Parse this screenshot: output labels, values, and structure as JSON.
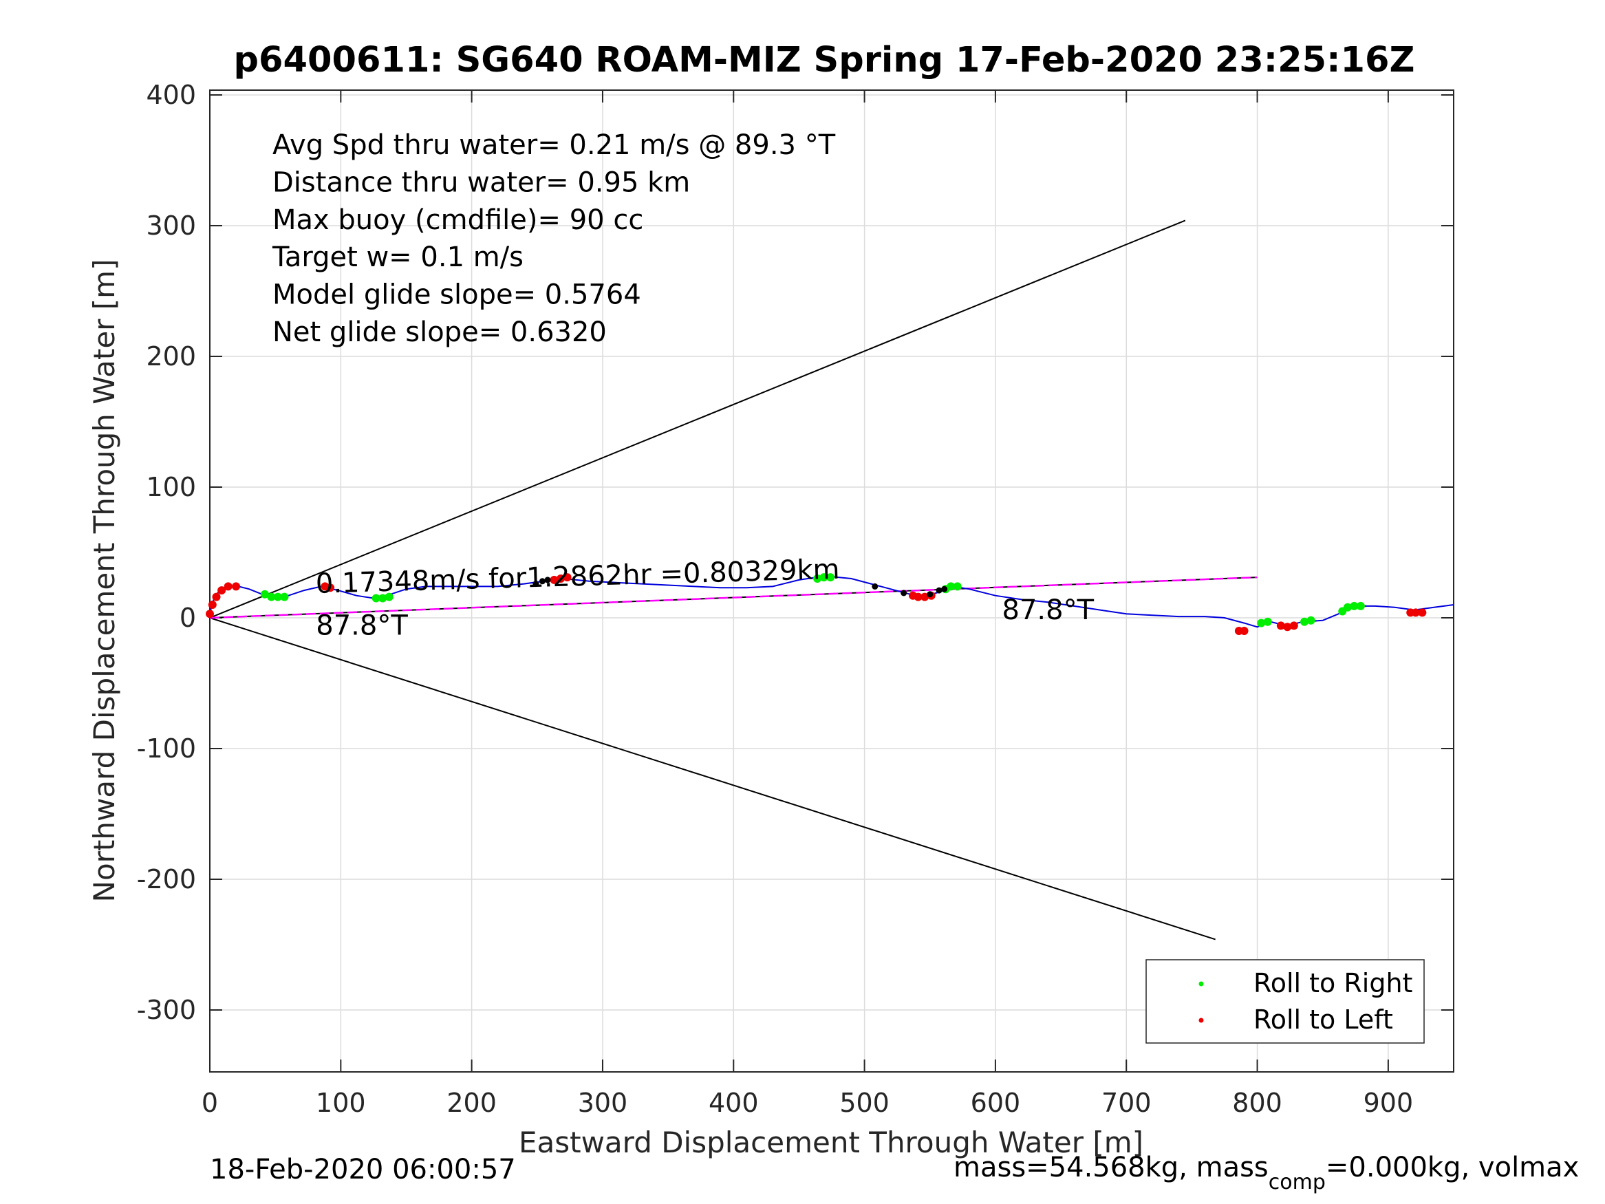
{
  "chart_data": {
    "type": "line",
    "title": "p6400611: SG640 ROAM-MIZ Spring 17-Feb-2020 23:25:16Z",
    "xlabel": "Eastward Displacement Through Water [m]",
    "ylabel": "Northward Displacement Through Water [m]",
    "xlim": [
      0,
      950
    ],
    "ylim": [
      -350,
      405
    ],
    "xticks": [
      0,
      100,
      200,
      300,
      400,
      500,
      600,
      700,
      800,
      900
    ],
    "yticks": [
      -300,
      -200,
      -100,
      0,
      100,
      200,
      300,
      400
    ],
    "x_tick_labels": [
      "0",
      "100",
      "200",
      "300",
      "400",
      "500",
      "600",
      "700",
      "800",
      "900"
    ],
    "y_tick_labels": [
      "-300",
      "-200",
      "-100",
      "0",
      "100",
      "200",
      "300",
      "400"
    ],
    "grid": true,
    "legend_position": "bottom-right",
    "info_lines": [
      "Avg Spd thru water=  0.21 m/s @  89.3 °T",
      "Distance thru water=  0.95 km",
      "Max buoy (cmdfile)= 90 cc",
      "Target w= 0.1 m/s",
      "Model glide slope= 0.5764",
      "Net glide slope= 0.6320"
    ],
    "annotations": [
      {
        "text": "0.17348m/s for1.2862hr =0.80329km",
        "x": 80,
        "y": 19
      },
      {
        "text": "87.8°T",
        "x": 80,
        "y": -13
      },
      {
        "text": "87.8°T",
        "x": 604,
        "y": -1
      }
    ],
    "legend": [
      {
        "label": "Roll to Right",
        "color": "#00ee00"
      },
      {
        "label": "Roll to Left",
        "color": "#ee0000"
      }
    ],
    "track": {
      "color": "#0000dd",
      "x": [
        0,
        1,
        3,
        6,
        10,
        15,
        22,
        30,
        40,
        50,
        60,
        72,
        85,
        98,
        112,
        125,
        138,
        150,
        165,
        180,
        200,
        220,
        240,
        255,
        270,
        290,
        310,
        330,
        350,
        370,
        390,
        410,
        430,
        450,
        470,
        490,
        505,
        520,
        535,
        548,
        558,
        568,
        580,
        600,
        620,
        640,
        660,
        680,
        700,
        720,
        740,
        760,
        775,
        790,
        800,
        810,
        822,
        835,
        850,
        862,
        875,
        890,
        905,
        920,
        935,
        950
      ],
      "y": [
        0,
        8,
        14,
        19,
        22,
        24,
        24,
        22,
        18,
        16,
        17,
        21,
        24,
        21,
        17,
        15,
        18,
        22,
        24,
        24,
        24,
        24,
        26,
        28,
        30,
        28,
        27,
        26,
        25,
        24,
        23,
        23,
        24,
        29,
        32,
        30,
        26,
        22,
        18,
        17,
        20,
        24,
        22,
        17,
        14,
        12,
        9,
        6,
        3,
        2,
        1,
        1,
        0,
        -4,
        -7,
        -3,
        -6,
        -3,
        -2,
        3,
        9,
        9,
        8,
        6,
        8,
        10
      ]
    },
    "course_line": {
      "color": "#000000",
      "x": [
        0,
        800
      ],
      "y": [
        0,
        31
      ]
    },
    "heading_line": {
      "color": "#ff00ff",
      "x": [
        0,
        800
      ],
      "y": [
        0,
        31
      ]
    },
    "envelope_upper": {
      "color": "#000000",
      "x": [
        0,
        745
      ],
      "y": [
        0,
        304
      ]
    },
    "envelope_lower": {
      "color": "#000000",
      "x": [
        0,
        768
      ],
      "y": [
        0,
        -246
      ]
    },
    "roll_left": [
      [
        0,
        3
      ],
      [
        2,
        10
      ],
      [
        5,
        16
      ],
      [
        9,
        21
      ],
      [
        14,
        24
      ],
      [
        20,
        24
      ],
      [
        88,
        24
      ],
      [
        92,
        23
      ],
      [
        263,
        29
      ],
      [
        268,
        30
      ],
      [
        273,
        31
      ],
      [
        537,
        17
      ],
      [
        541,
        16
      ],
      [
        546,
        16
      ],
      [
        551,
        17
      ],
      [
        786,
        -10
      ],
      [
        790,
        -10
      ],
      [
        818,
        -6
      ],
      [
        823,
        -7
      ],
      [
        828,
        -6
      ],
      [
        917,
        4
      ],
      [
        921,
        4
      ],
      [
        926,
        4
      ]
    ],
    "roll_right": [
      [
        42,
        18
      ],
      [
        47,
        16
      ],
      [
        52,
        16
      ],
      [
        57,
        16
      ],
      [
        127,
        15
      ],
      [
        132,
        15
      ],
      [
        137,
        16
      ],
      [
        464,
        30
      ],
      [
        469,
        31
      ],
      [
        474,
        31
      ],
      [
        562,
        22
      ],
      [
        566,
        24
      ],
      [
        571,
        24
      ],
      [
        803,
        -4
      ],
      [
        808,
        -3
      ],
      [
        836,
        -3
      ],
      [
        841,
        -2
      ],
      [
        865,
        5
      ],
      [
        869,
        8
      ],
      [
        874,
        9
      ],
      [
        879,
        9
      ]
    ],
    "black_dots": [
      [
        249,
        26
      ],
      [
        254,
        28
      ],
      [
        258,
        29
      ],
      [
        508,
        24
      ],
      [
        530,
        19
      ],
      [
        550,
        18
      ],
      [
        557,
        21
      ],
      [
        561,
        22
      ]
    ]
  },
  "footer": {
    "timestamp": "18-Feb-2020 06:00:57",
    "mass_pre": "mass=54.568kg, mass",
    "mass_sub": "comp",
    "mass_post": "=0.000kg, volmax"
  }
}
